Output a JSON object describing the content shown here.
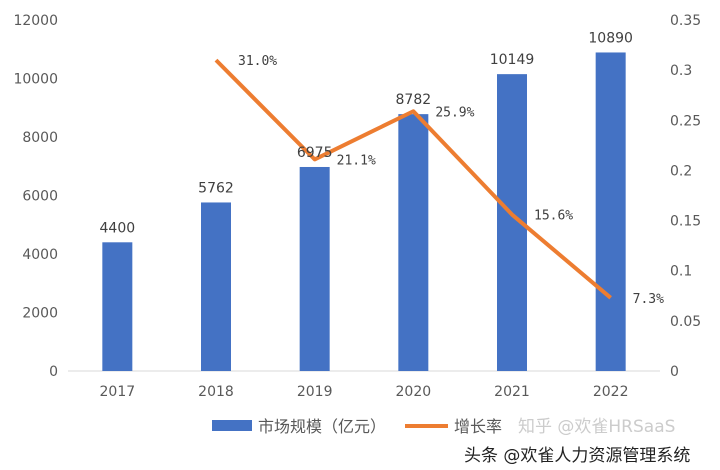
{
  "chart_data": {
    "type": "bar+line",
    "categories": [
      "2017",
      "2018",
      "2019",
      "2020",
      "2021",
      "2022"
    ],
    "series": [
      {
        "name": "市场规模（亿元）",
        "type": "bar",
        "axis": "left",
        "color": "#4472C4",
        "values": [
          4400,
          5762,
          6975,
          8782,
          10149,
          10890
        ],
        "labels": [
          "4400",
          "5762",
          "6975",
          "8782",
          "10149",
          "10890"
        ]
      },
      {
        "name": "增长率",
        "type": "line",
        "axis": "right",
        "color": "#ED7D31",
        "values": [
          null,
          0.31,
          0.211,
          0.259,
          0.156,
          0.073
        ],
        "labels": [
          "",
          "31.0%",
          "21.1%",
          "25.9%",
          "15.6%",
          "7.3%"
        ]
      }
    ],
    "y_left": {
      "range": [
        0,
        12000
      ],
      "ticks": [
        "0",
        "2000",
        "4000",
        "6000",
        "8000",
        "10000",
        "12000"
      ]
    },
    "y_right": {
      "range": [
        0,
        0.35
      ],
      "ticks": [
        "0",
        "0.05",
        "0.1",
        "0.15",
        "0.2",
        "0.25",
        "0.3",
        "0.35"
      ]
    },
    "grid": false,
    "legend_placement": "bottom"
  },
  "watermark": {
    "main": "头条 @欢雀人力资源管理系统",
    "faint": "知乎 @欢雀HRSaaS"
  }
}
